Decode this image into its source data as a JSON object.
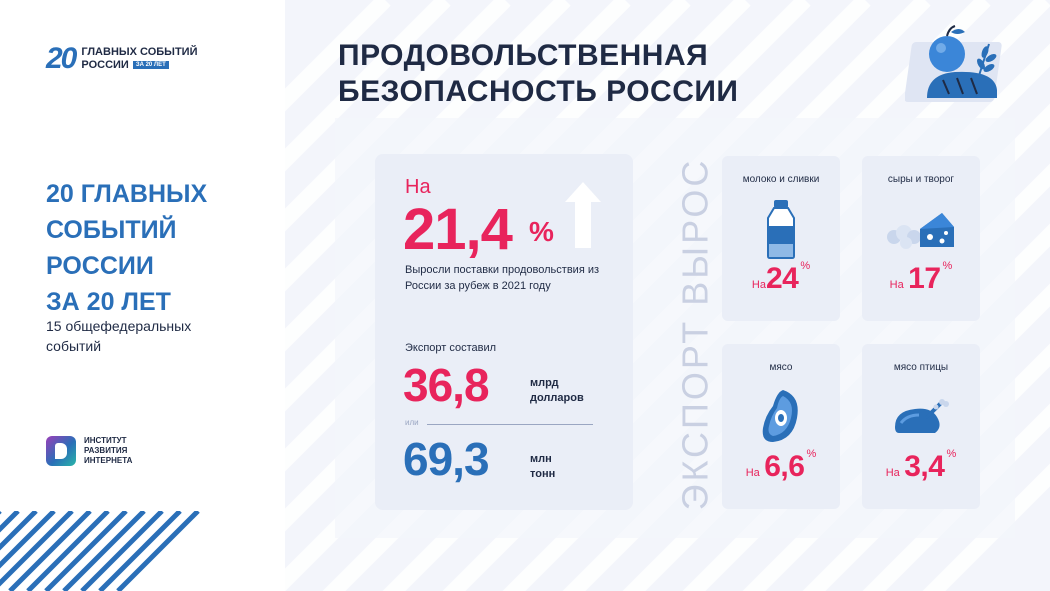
{
  "logo": {
    "number": "20",
    "line1": "ГЛАВНЫХ СОБЫТИЙ",
    "line2": "РОССИИ",
    "tag": "ЗА 20 ЛЕТ"
  },
  "sidebar": {
    "title_lines": [
      "20 ГЛАВНЫХ",
      "СОБЫТИЙ",
      "РОССИИ",
      "ЗА 20 ЛЕТ"
    ],
    "subtitle": "15 общефедеральных событий",
    "institute_lines": [
      "ИНСТИТУТ",
      "РАЗВИТИЯ",
      "ИНТЕРНЕТА"
    ]
  },
  "header": {
    "title_lines": [
      "ПРОДОВОЛЬСТВЕННАЯ",
      "БЕЗОПАСНОСТЬ РОССИИ"
    ],
    "icon": "apple-bread-wheat-icon"
  },
  "main_panel": {
    "prefix": "На",
    "growth_value": "21,4",
    "growth_unit": "%",
    "description": "Выросли поставки продовольствия из России за рубеж в 2021 году",
    "export_label": "Экспорт составил",
    "value_usd": "36,8",
    "unit_usd_1": "млрд",
    "unit_usd_2": "долларов",
    "or_label": "или",
    "value_tons": "69,3",
    "unit_tons_1": "млн",
    "unit_tons_2": "тонн",
    "arrow_icon": "arrow-up-icon"
  },
  "vertical_label": "ЭКСПОРТ ВЫРОС",
  "categories": [
    {
      "label": "молоко и сливки",
      "prefix": "На",
      "value": "24",
      "unit": "%",
      "icon": "milk-bottle-icon"
    },
    {
      "label": "сыры и творог",
      "prefix": "На",
      "value": "17",
      "unit": "%",
      "icon": "cheese-icon"
    },
    {
      "label": "мясо",
      "prefix": "На",
      "value": "6,6",
      "unit": "%",
      "icon": "meat-steak-icon"
    },
    {
      "label": "мясо птицы",
      "prefix": "На",
      "value": "3,4",
      "unit": "%",
      "icon": "roast-chicken-icon"
    }
  ],
  "colors": {
    "accent_red": "#e8245c",
    "accent_blue": "#2a6fb8",
    "dark_text": "#1f2a44",
    "panel_bg": "#eaeef7"
  }
}
